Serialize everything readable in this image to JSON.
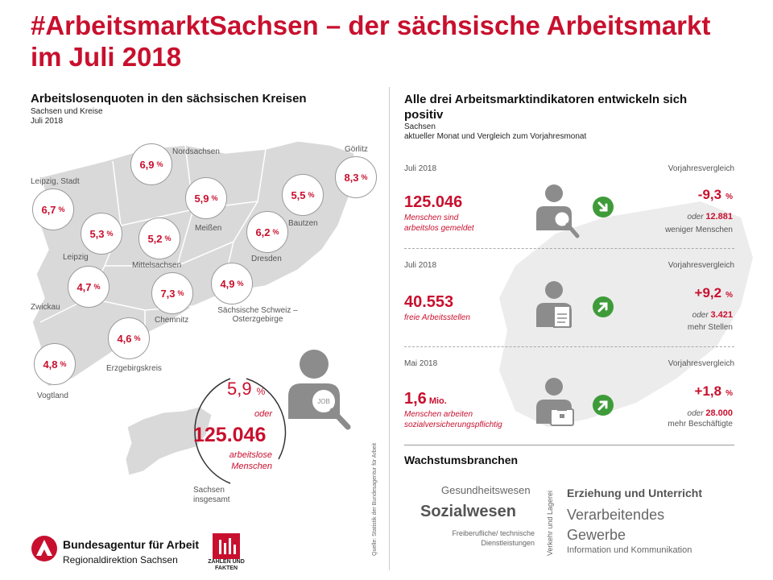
{
  "title": "#ArbeitsmarktSachsen – der sächsische Arbeitsmarkt im Juli 2018",
  "left": {
    "heading": "Arbeitslosenquoten in den sächsischen Kreisen",
    "sub1": "Sachsen und Kreise",
    "sub2": "Juli 2018",
    "pct_sign": "%",
    "bubbles": [
      {
        "value": "6,9"
      },
      {
        "value": "8,3"
      },
      {
        "value": "6,7"
      },
      {
        "value": "5,9"
      },
      {
        "value": "5,5"
      },
      {
        "value": "5,3"
      },
      {
        "value": "5,2"
      },
      {
        "value": "6,2"
      },
      {
        "value": "4,7"
      },
      {
        "value": "7,3"
      },
      {
        "value": "4,9"
      },
      {
        "value": "4,6"
      },
      {
        "value": "4,8"
      }
    ],
    "regions": {
      "nordsachsen": "Nordsachsen",
      "goerlitz": "Görlitz",
      "leipzig_stadt": "Leipzig, Stadt",
      "meissen": "Meißen",
      "bautzen": "Bautzen",
      "leipzig": "Leipzig",
      "mittelsachsen": "Mittelsachsen",
      "dresden": "Dresden",
      "zwickau": "Zwickau",
      "chemnitz": "Chemnitz",
      "saechsische_schweiz": "Sächsische Schweiz –",
      "osterzgebirge": "Osterzgebirge",
      "erzgebirgskreis": "Erzgebirgskreis",
      "vogtland": "Vogtland"
    },
    "overall_rate": "5,9",
    "oder": "oder",
    "overall_count": "125.046",
    "count_desc1": "arbeitslose",
    "count_desc2": "Menschen",
    "sachsen1": "Sachsen",
    "sachsen2": "insgesamt",
    "job_label": "JOB"
  },
  "source": "Quelle: Statistik der Bundesagentur für Arbeit",
  "right": {
    "heading": "Alle drei Arbeitsmarktindikatoren entwickeln sich positiv",
    "sub1": "Sachsen",
    "sub2": "aktueller Monat und Vergleich zum Vorjahresmonat",
    "indicators": [
      {
        "date": "Juli 2018",
        "vj": "Vorjahresvergleich",
        "value": "125.046",
        "unit": "",
        "desc1": "Menschen sind",
        "desc2": "arbeitslos gemeldet",
        "change": "-9,3",
        "pct": "%",
        "oder": "oder",
        "abs": "12.881",
        "more": "weniger Menschen"
      },
      {
        "date": "Juli 2018",
        "vj": "Vorjahresvergleich",
        "value": "40.553",
        "unit": "",
        "desc1": "freie Arbeitsstellen",
        "desc2": "",
        "change": "+9,2",
        "pct": "%",
        "oder": "oder",
        "abs": "3.421",
        "more": "mehr Stellen"
      },
      {
        "date": "Mai 2018",
        "vj": "Vorjahresvergleich",
        "value": "1,6",
        "unit": "Mio.",
        "desc1": "Menschen arbeiten",
        "desc2": "sozialversicherungspflichtig",
        "change": "+1,8",
        "pct": "%",
        "oder": "oder",
        "abs": "28.000",
        "more": "mehr Beschäftigte"
      }
    ],
    "wachstum": {
      "heading": "Wachstumsbranchen",
      "w1": "Gesundheitswesen",
      "w2": "Sozialwesen",
      "w3a": "Freiberufliche/ technische",
      "w3b": "Dienstleistungen",
      "w4": "Verkehr und Lagerei",
      "w5": "Erziehung und Unterricht",
      "w6a": "Verarbeitendes",
      "w6b": "Gewerbe",
      "w7": "Information und Kommunikation"
    }
  },
  "footer": {
    "ba_name": "Bundesagentur für Arbeit",
    "ba_sub": "Regionaldirektion Sachsen",
    "zf1": "ZAHLEN UND",
    "zf2": "FAKTEN"
  },
  "colors": {
    "accent": "#c8102e",
    "green": "#3f9b3a",
    "map": "#d9d9d9"
  }
}
